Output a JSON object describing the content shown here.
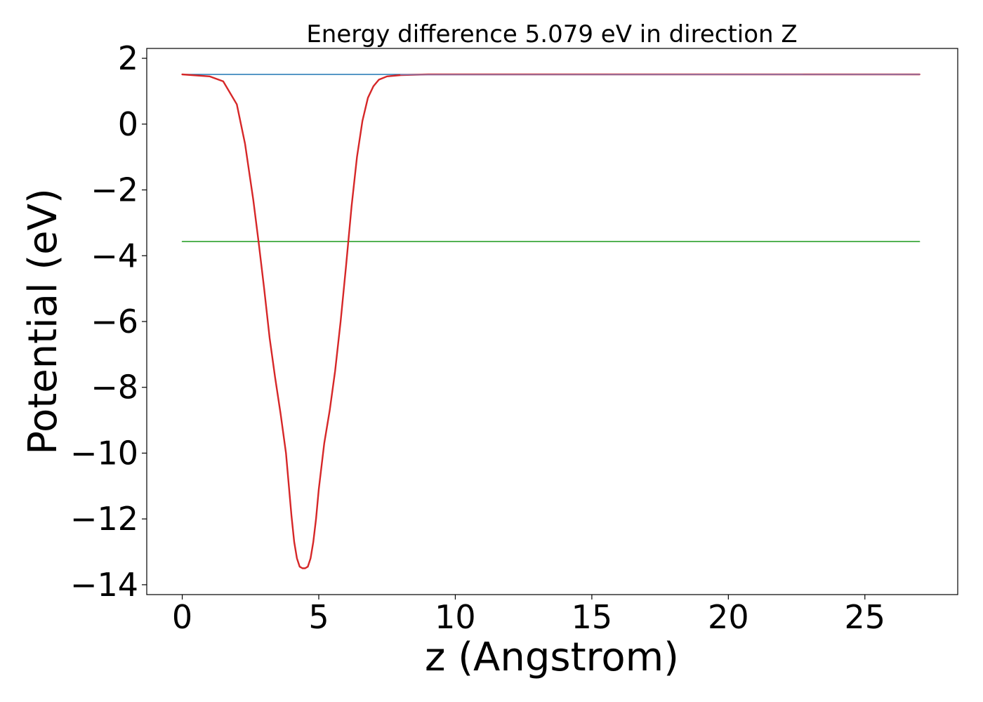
{
  "chart_data": {
    "type": "line",
    "title": "Energy difference 5.079 eV in direction Z",
    "xlabel": "z (Angstrom)",
    "ylabel": "Potential (eV)",
    "xlim": [
      -1.3,
      28.4
    ],
    "ylim": [
      -14.3,
      2.3
    ],
    "xticks": [
      0,
      5,
      10,
      15,
      20,
      25
    ],
    "xtick_labels": [
      "0",
      "5",
      "10",
      "15",
      "20",
      "25"
    ],
    "yticks": [
      2,
      0,
      -2,
      -4,
      -6,
      -8,
      -10,
      -12,
      -14
    ],
    "ytick_labels": [
      "2",
      "0",
      "−2",
      "−4",
      "−6",
      "−8",
      "−10",
      "−12",
      "−14"
    ],
    "grid": false,
    "legend": "none",
    "series": [
      {
        "color": "#1f77b4",
        "x": [
          0,
          27
        ],
        "y": [
          1.51,
          1.51
        ]
      },
      {
        "color": "#2ca02c",
        "x": [
          0,
          27
        ],
        "y": [
          -3.57,
          -3.57
        ]
      },
      {
        "color": "#d62728",
        "x": [
          0,
          1.0,
          1.5,
          2.0,
          2.3,
          2.6,
          2.8,
          3.0,
          3.2,
          3.4,
          3.6,
          3.8,
          4.0,
          4.1,
          4.2,
          4.3,
          4.4,
          4.5,
          4.6,
          4.7,
          4.8,
          4.9,
          5.0,
          5.2,
          5.4,
          5.6,
          5.8,
          6.0,
          6.2,
          6.4,
          6.6,
          6.8,
          7.0,
          7.2,
          7.5,
          8.0,
          8.5,
          9.0,
          10.0,
          27.0
        ],
        "y": [
          1.51,
          1.45,
          1.3,
          0.6,
          -0.6,
          -2.3,
          -3.6,
          -5.0,
          -6.5,
          -7.7,
          -8.8,
          -10.0,
          -11.9,
          -12.7,
          -13.2,
          -13.45,
          -13.5,
          -13.5,
          -13.45,
          -13.2,
          -12.7,
          -12.0,
          -11.1,
          -9.7,
          -8.7,
          -7.5,
          -6.0,
          -4.3,
          -2.5,
          -1.0,
          0.1,
          0.8,
          1.15,
          1.35,
          1.45,
          1.49,
          1.5,
          1.51,
          1.51,
          1.51
        ]
      },
      {
        "color": "#8c7bb0",
        "x": [
          8.0,
          27.0
        ],
        "y": [
          1.5,
          1.51
        ]
      }
    ]
  }
}
